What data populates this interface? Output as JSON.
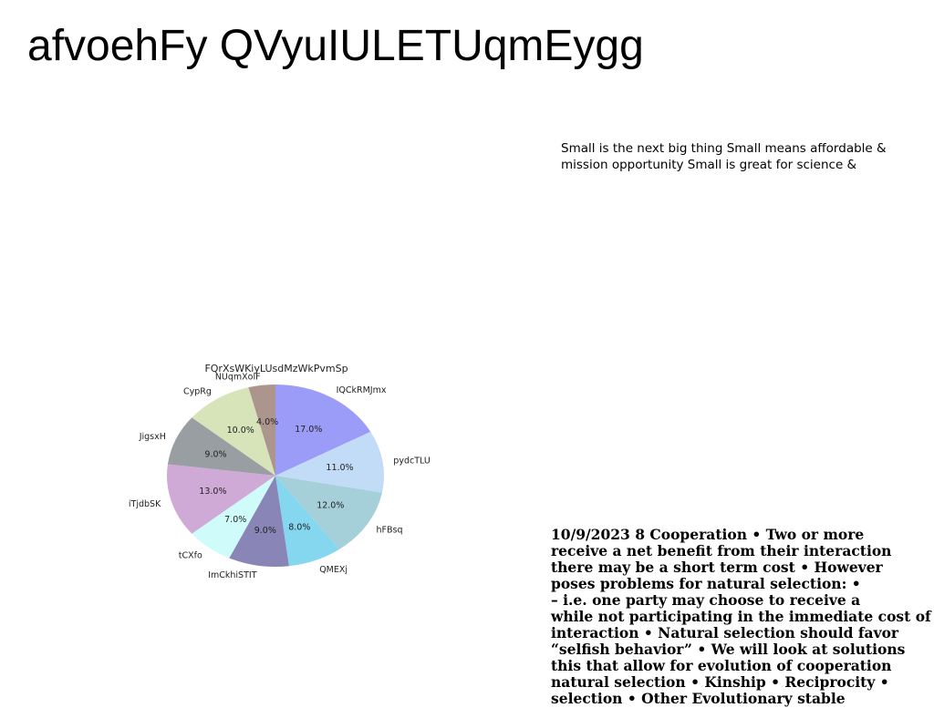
{
  "page": {
    "title": "afvoehFy QVyuIULETUqmEygg",
    "side_text_lines": [
      "Small is the next big thing Small means affordable &",
      "mission opportunity Small is great for science &"
    ],
    "bottom_text_lines": [
      "10/9/2023 8 Cooperation • Two or more",
      "receive a net benefit from their interaction",
      "there may be a short term cost • However",
      "poses problems for natural selection: •",
      "– i.e. one party may choose to receive a",
      "while not participating in the immediate cost of",
      "interaction • Natural selection should favor",
      "“selfish behavior” • We will look at solutions",
      "this that allow for evolution of cooperation",
      "natural selection • Kinship • Reciprocity •",
      "selection • Other Evolutionary stable"
    ]
  },
  "chart_data": {
    "type": "pie",
    "title": "FQrXsWKiyLUsdMzWkPvmSp",
    "start_angle": 90,
    "direction": "clockwise",
    "slices": [
      {
        "label": "IQCkRMJmx",
        "value": 17.0,
        "pct_label": "17.0%",
        "color": "#9b9cf8"
      },
      {
        "label": "pydcTLU",
        "value": 11.0,
        "pct_label": "11.0%",
        "color": "#c2dbf6"
      },
      {
        "label": "hFBsq",
        "value": 12.0,
        "pct_label": "12.0%",
        "color": "#a5d0da"
      },
      {
        "label": "QMEXj",
        "value": 8.0,
        "pct_label": "8.0%",
        "color": "#84d7ef"
      },
      {
        "label": "ImCkhiSTIT",
        "value": 9.0,
        "pct_label": "9.0%",
        "color": "#8986b7"
      },
      {
        "label": "tCXfo",
        "value": 7.0,
        "pct_label": "7.0%",
        "color": "#cffbfb"
      },
      {
        "label": "iTjdbSK",
        "value": 13.0,
        "pct_label": "13.0%",
        "color": "#cfaad6"
      },
      {
        "label": "JigsxH",
        "value": 9.0,
        "pct_label": "9.0%",
        "color": "#999ea3"
      },
      {
        "label": "CypRg",
        "value": 10.0,
        "pct_label": "10.0%",
        "color": "#d7e3b8"
      },
      {
        "label": "NUqmXolF",
        "value": 4.0,
        "pct_label": "4.0%",
        "color": "#ac958d"
      }
    ]
  }
}
